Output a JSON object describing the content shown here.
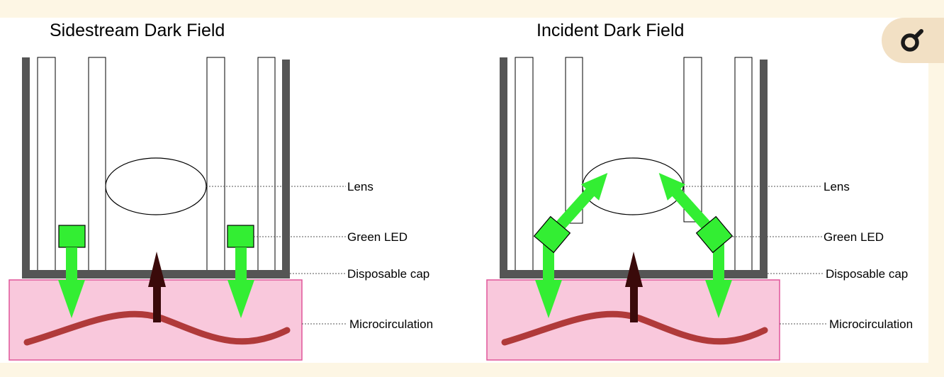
{
  "panels": [
    {
      "title": "Sidestream Dark Field",
      "labels": {
        "lens": "Lens",
        "led": "Green LED",
        "cap": "Disposable cap",
        "micro": "Microcirculation"
      }
    },
    {
      "title": "Incident Dark Field",
      "labels": {
        "lens": "Lens",
        "led": "Green LED",
        "cap": "Disposable cap",
        "micro": "Microcirculation"
      }
    }
  ],
  "icons": {
    "corner_button": "magnifier-icon"
  },
  "colors": {
    "background": "#fdf6e4",
    "panel": "#ffffff",
    "wall": "#555555",
    "led": "#33ee33",
    "tissue_fill": "#f9c8dc",
    "tissue_border": "#e0559a",
    "vessel": "#b03a3a",
    "reflect_arrow": "#3a0a0a"
  }
}
